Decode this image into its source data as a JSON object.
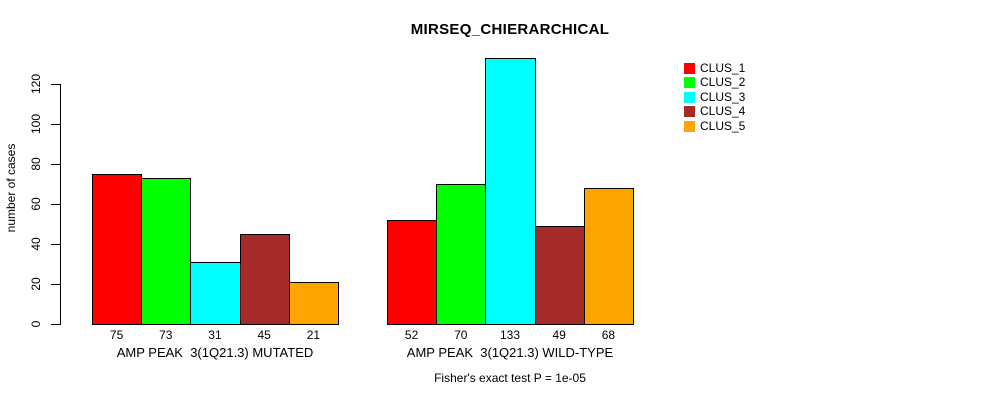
{
  "chart_data": {
    "type": "bar",
    "title": "MIRSEQ_CHIERARCHICAL",
    "ylabel": "number of cases",
    "xlabel": "",
    "categories": [
      "AMP PEAK  3(1Q21.3) MUTATED",
      "AMP PEAK  3(1Q21.3) WILD-TYPE"
    ],
    "series": [
      {
        "name": "CLUS_1",
        "color": "#FF0000",
        "values": [
          75,
          52
        ]
      },
      {
        "name": "CLUS_2",
        "color": "#00FF00",
        "values": [
          73,
          70
        ]
      },
      {
        "name": "CLUS_3",
        "color": "#00FFFF",
        "values": [
          31,
          133
        ]
      },
      {
        "name": "CLUS_4",
        "color": "#A52A2A",
        "values": [
          45,
          49
        ]
      },
      {
        "name": "CLUS_5",
        "color": "#FFA500",
        "values": [
          21,
          68
        ]
      }
    ],
    "yticks": [
      0,
      20,
      40,
      60,
      80,
      100,
      120
    ],
    "ylim": [
      0,
      133
    ],
    "grid": false,
    "legend_position": "top-right",
    "bar_borders": "#000000",
    "annotation": "Fisher's exact test P = 1e-05"
  }
}
